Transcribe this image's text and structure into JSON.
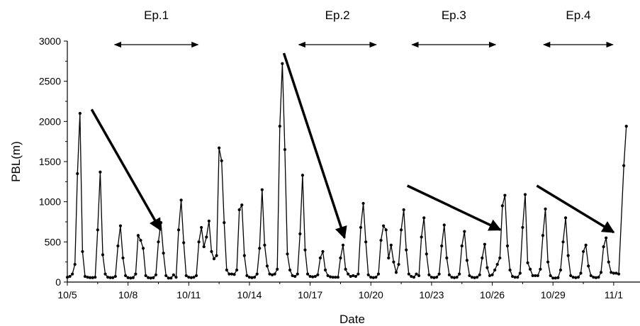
{
  "chart_data": {
    "type": "line",
    "title": "",
    "xlabel": "Date",
    "ylabel": "PBL(m)",
    "xlim": [
      5.0,
      33.3
    ],
    "ylim": [
      0,
      3000
    ],
    "x_unit": "day of October (values above 31 are November days)",
    "x_ticks": [
      {
        "x": 5,
        "label": "10/5"
      },
      {
        "x": 8,
        "label": "10/8"
      },
      {
        "x": 11,
        "label": "10/11"
      },
      {
        "x": 14,
        "label": "10/14"
      },
      {
        "x": 17,
        "label": "10/17"
      },
      {
        "x": 20,
        "label": "10/20"
      },
      {
        "x": 23,
        "label": "10/23"
      },
      {
        "x": 26,
        "label": "10/26"
      },
      {
        "x": 29,
        "label": "10/29"
      },
      {
        "x": 32,
        "label": "11/1"
      }
    ],
    "y_ticks": [
      {
        "y": 0,
        "label": "0"
      },
      {
        "y": 500,
        "label": "500"
      },
      {
        "y": 1000,
        "label": "1000"
      },
      {
        "y": 1500,
        "label": "1500"
      },
      {
        "y": 2000,
        "label": "2000"
      },
      {
        "y": 2500,
        "label": "2500"
      },
      {
        "y": 3000,
        "label": "3000"
      }
    ],
    "grid": false,
    "series": [
      {
        "marker": "circle",
        "color": "#000000",
        "points": [
          [
            5.0,
            60
          ],
          [
            5.125,
            70
          ],
          [
            5.25,
            100
          ],
          [
            5.375,
            220
          ],
          [
            5.5,
            1350
          ],
          [
            5.625,
            2100
          ],
          [
            5.75,
            380
          ],
          [
            5.875,
            70
          ],
          [
            6.0,
            60
          ],
          [
            6.125,
            55
          ],
          [
            6.25,
            55
          ],
          [
            6.375,
            60
          ],
          [
            6.5,
            650
          ],
          [
            6.625,
            1370
          ],
          [
            6.75,
            340
          ],
          [
            6.875,
            100
          ],
          [
            7.0,
            60
          ],
          [
            7.125,
            55
          ],
          [
            7.25,
            55
          ],
          [
            7.375,
            70
          ],
          [
            7.5,
            450
          ],
          [
            7.625,
            700
          ],
          [
            7.75,
            300
          ],
          [
            7.875,
            80
          ],
          [
            8.0,
            55
          ],
          [
            8.125,
            50
          ],
          [
            8.25,
            55
          ],
          [
            8.375,
            100
          ],
          [
            8.5,
            580
          ],
          [
            8.625,
            520
          ],
          [
            8.75,
            420
          ],
          [
            8.875,
            80
          ],
          [
            9.0,
            55
          ],
          [
            9.125,
            50
          ],
          [
            9.25,
            55
          ],
          [
            9.375,
            90
          ],
          [
            9.5,
            500
          ],
          [
            9.625,
            740
          ],
          [
            9.75,
            360
          ],
          [
            9.875,
            80
          ],
          [
            10.0,
            50
          ],
          [
            10.125,
            50
          ],
          [
            10.25,
            90
          ],
          [
            10.375,
            60
          ],
          [
            10.5,
            650
          ],
          [
            10.625,
            1020
          ],
          [
            10.75,
            490
          ],
          [
            10.875,
            80
          ],
          [
            11.0,
            60
          ],
          [
            11.125,
            55
          ],
          [
            11.25,
            60
          ],
          [
            11.375,
            80
          ],
          [
            11.5,
            500
          ],
          [
            11.625,
            680
          ],
          [
            11.75,
            440
          ],
          [
            11.875,
            560
          ],
          [
            12.0,
            760
          ],
          [
            12.125,
            380
          ],
          [
            12.25,
            290
          ],
          [
            12.375,
            330
          ],
          [
            12.5,
            1670
          ],
          [
            12.625,
            1510
          ],
          [
            12.75,
            740
          ],
          [
            12.875,
            150
          ],
          [
            13.0,
            100
          ],
          [
            13.125,
            100
          ],
          [
            13.25,
            95
          ],
          [
            13.375,
            150
          ],
          [
            13.5,
            900
          ],
          [
            13.625,
            960
          ],
          [
            13.75,
            330
          ],
          [
            13.875,
            80
          ],
          [
            14.0,
            60
          ],
          [
            14.125,
            55
          ],
          [
            14.25,
            60
          ],
          [
            14.375,
            100
          ],
          [
            14.5,
            420
          ],
          [
            14.625,
            1150
          ],
          [
            14.75,
            460
          ],
          [
            14.875,
            200
          ],
          [
            15.0,
            100
          ],
          [
            15.125,
            90
          ],
          [
            15.25,
            100
          ],
          [
            15.375,
            160
          ],
          [
            15.5,
            1940
          ],
          [
            15.625,
            2720
          ],
          [
            15.75,
            1650
          ],
          [
            15.875,
            350
          ],
          [
            16.0,
            150
          ],
          [
            16.125,
            80
          ],
          [
            16.25,
            70
          ],
          [
            16.375,
            100
          ],
          [
            16.5,
            600
          ],
          [
            16.625,
            1330
          ],
          [
            16.75,
            400
          ],
          [
            16.875,
            100
          ],
          [
            17.0,
            70
          ],
          [
            17.125,
            65
          ],
          [
            17.25,
            70
          ],
          [
            17.375,
            90
          ],
          [
            17.5,
            300
          ],
          [
            17.625,
            380
          ],
          [
            17.75,
            150
          ],
          [
            17.875,
            80
          ],
          [
            18.0,
            65
          ],
          [
            18.125,
            60
          ],
          [
            18.25,
            60
          ],
          [
            18.375,
            60
          ],
          [
            18.5,
            300
          ],
          [
            18.625,
            460
          ],
          [
            18.75,
            160
          ],
          [
            18.875,
            100
          ],
          [
            19.0,
            70
          ],
          [
            19.125,
            80
          ],
          [
            19.25,
            70
          ],
          [
            19.375,
            100
          ],
          [
            19.5,
            680
          ],
          [
            19.625,
            980
          ],
          [
            19.75,
            500
          ],
          [
            19.875,
            90
          ],
          [
            20.0,
            60
          ],
          [
            20.125,
            55
          ],
          [
            20.25,
            60
          ],
          [
            20.375,
            100
          ],
          [
            20.5,
            520
          ],
          [
            20.625,
            700
          ],
          [
            20.75,
            650
          ],
          [
            20.875,
            300
          ],
          [
            21.0,
            460
          ],
          [
            21.125,
            250
          ],
          [
            21.25,
            120
          ],
          [
            21.375,
            220
          ],
          [
            21.5,
            650
          ],
          [
            21.625,
            900
          ],
          [
            21.75,
            400
          ],
          [
            21.875,
            100
          ],
          [
            22.0,
            70
          ],
          [
            22.125,
            60
          ],
          [
            22.25,
            100
          ],
          [
            22.375,
            80
          ],
          [
            22.5,
            560
          ],
          [
            22.625,
            800
          ],
          [
            22.75,
            350
          ],
          [
            22.875,
            90
          ],
          [
            23.0,
            60
          ],
          [
            23.125,
            55
          ],
          [
            23.25,
            60
          ],
          [
            23.375,
            100
          ],
          [
            23.5,
            450
          ],
          [
            23.625,
            710
          ],
          [
            23.75,
            300
          ],
          [
            23.875,
            90
          ],
          [
            24.0,
            60
          ],
          [
            24.125,
            55
          ],
          [
            24.25,
            60
          ],
          [
            24.375,
            100
          ],
          [
            24.5,
            450
          ],
          [
            24.625,
            630
          ],
          [
            24.75,
            270
          ],
          [
            24.875,
            80
          ],
          [
            25.0,
            60
          ],
          [
            25.125,
            55
          ],
          [
            25.25,
            60
          ],
          [
            25.375,
            90
          ],
          [
            25.5,
            300
          ],
          [
            25.625,
            470
          ],
          [
            25.75,
            180
          ],
          [
            25.875,
            80
          ],
          [
            26.0,
            90
          ],
          [
            26.125,
            150
          ],
          [
            26.25,
            220
          ],
          [
            26.375,
            300
          ],
          [
            26.5,
            950
          ],
          [
            26.625,
            1080
          ],
          [
            26.75,
            450
          ],
          [
            26.875,
            150
          ],
          [
            27.0,
            70
          ],
          [
            27.125,
            60
          ],
          [
            27.25,
            60
          ],
          [
            27.375,
            110
          ],
          [
            27.5,
            680
          ],
          [
            27.625,
            1090
          ],
          [
            27.75,
            240
          ],
          [
            27.875,
            160
          ],
          [
            28.0,
            80
          ],
          [
            28.125,
            80
          ],
          [
            28.25,
            80
          ],
          [
            28.375,
            160
          ],
          [
            28.5,
            580
          ],
          [
            28.625,
            910
          ],
          [
            28.75,
            250
          ],
          [
            28.875,
            80
          ],
          [
            29.0,
            50
          ],
          [
            29.125,
            50
          ],
          [
            29.25,
            55
          ],
          [
            29.375,
            150
          ],
          [
            29.5,
            500
          ],
          [
            29.625,
            800
          ],
          [
            29.75,
            330
          ],
          [
            29.875,
            80
          ],
          [
            30.0,
            60
          ],
          [
            30.125,
            55
          ],
          [
            30.25,
            60
          ],
          [
            30.375,
            110
          ],
          [
            30.5,
            380
          ],
          [
            30.625,
            460
          ],
          [
            30.75,
            200
          ],
          [
            30.875,
            80
          ],
          [
            31.0,
            60
          ],
          [
            31.125,
            55
          ],
          [
            31.25,
            60
          ],
          [
            31.375,
            120
          ],
          [
            31.5,
            440
          ],
          [
            31.625,
            550
          ],
          [
            31.75,
            250
          ],
          [
            31.875,
            120
          ],
          [
            32.0,
            110
          ],
          [
            32.125,
            110
          ],
          [
            32.25,
            100
          ],
          [
            32.5,
            1450
          ],
          [
            32.625,
            1940
          ]
        ]
      }
    ],
    "annotations": {
      "episodes": [
        {
          "label": "Ep.1",
          "x_start": 7.3,
          "x_end": 11.5
        },
        {
          "label": "Ep.2",
          "x_start": 16.4,
          "x_end": 20.3
        },
        {
          "label": "Ep.3",
          "x_start": 22.0,
          "x_end": 26.2
        },
        {
          "label": "Ep.4",
          "x_start": 28.5,
          "x_end": 32.0
        }
      ],
      "trend_arrows": [
        {
          "from": [
            6.2,
            2150
          ],
          "to": [
            9.6,
            650
          ]
        },
        {
          "from": [
            15.7,
            2850
          ],
          "to": [
            18.7,
            550
          ]
        },
        {
          "from": [
            21.8,
            1200
          ],
          "to": [
            26.4,
            650
          ]
        },
        {
          "from": [
            28.2,
            1200
          ],
          "to": [
            32.0,
            620
          ]
        }
      ]
    }
  }
}
